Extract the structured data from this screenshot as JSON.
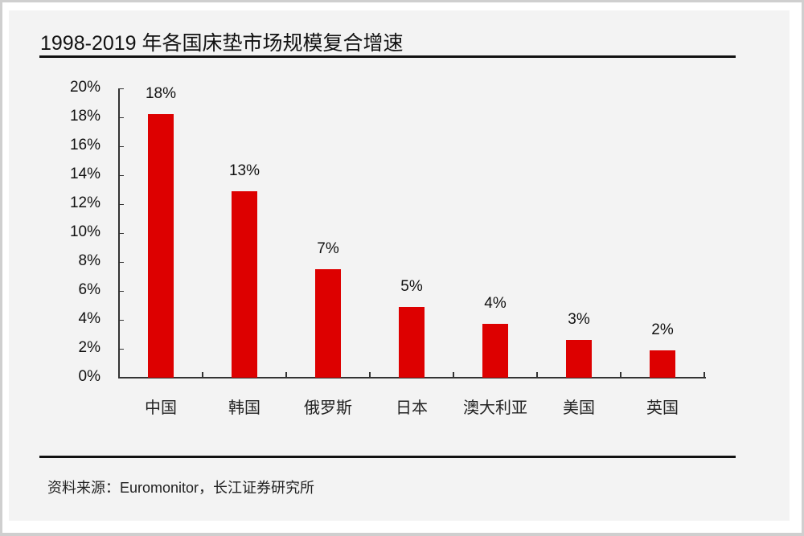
{
  "title": "1998-2019 年各国床垫市场规模复合增速",
  "source": "资料来源：Euromonitor，长江证券研究所",
  "colors": {
    "bar": "#dd0000",
    "panel": "#f3f3f3",
    "frame": "#cfcfcf"
  },
  "chart_data": {
    "type": "bar",
    "title": "1998-2019 年各国床垫市场规模复合增速",
    "categories": [
      "中国",
      "韩国",
      "俄罗斯",
      "日本",
      "澳大利亚",
      "美国",
      "英国"
    ],
    "values": [
      18.2,
      12.9,
      7.5,
      4.9,
      3.7,
      2.6,
      1.9
    ],
    "data_labels": [
      "18%",
      "13%",
      "7%",
      "5%",
      "4%",
      "3%",
      "2%"
    ],
    "xlabel": "",
    "ylabel": "",
    "ylim": [
      0,
      20
    ],
    "yticks": [
      "0%",
      "2%",
      "4%",
      "6%",
      "8%",
      "10%",
      "12%",
      "14%",
      "16%",
      "18%",
      "20%"
    ],
    "grid": false,
    "legend": null,
    "source": "资料来源：Euromonitor，长江证券研究所"
  }
}
